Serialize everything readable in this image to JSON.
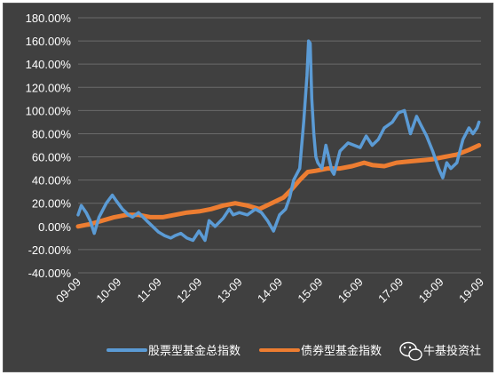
{
  "chart_data": {
    "type": "line",
    "xlabel": "",
    "ylabel": "",
    "ylim": [
      -40,
      180
    ],
    "y_unit": "%",
    "y_ticks": [
      "180.00%",
      "160.00%",
      "140.00%",
      "120.00%",
      "100.00%",
      "80.00%",
      "60.00%",
      "40.00%",
      "20.00%",
      "0.00%",
      "-20.00%",
      "-40.00%"
    ],
    "x_ticks": [
      "09-09",
      "10-09",
      "11-09",
      "12-09",
      "13-09",
      "14-09",
      "15-09",
      "16-09",
      "17-09",
      "18-09",
      "19-09"
    ],
    "grid": true,
    "legend_position": "bottom",
    "series": [
      {
        "name": "股票型基金总指数",
        "color": "#5b9bd5",
        "x": [
          2009.7,
          2009.78,
          2009.9,
          2010.0,
          2010.1,
          2010.22,
          2010.4,
          2010.55,
          2010.65,
          2010.8,
          2010.95,
          2011.05,
          2011.2,
          2011.4,
          2011.55,
          2011.7,
          2011.85,
          2012.0,
          2012.1,
          2012.25,
          2012.4,
          2012.55,
          2012.7,
          2012.85,
          2012.95,
          2013.1,
          2013.3,
          2013.45,
          2013.55,
          2013.7,
          2013.9,
          2014.1,
          2014.25,
          2014.4,
          2014.55,
          2014.7,
          2014.85,
          2014.95,
          2015.05,
          2015.2,
          2015.3,
          2015.38,
          2015.42,
          2015.46,
          2015.5,
          2015.55,
          2015.6,
          2015.65,
          2015.75,
          2015.85,
          2016.0,
          2016.05,
          2016.2,
          2016.4,
          2016.55,
          2016.7,
          2016.85,
          2017.0,
          2017.15,
          2017.3,
          2017.5,
          2017.65,
          2017.8,
          2017.95,
          2018.1,
          2018.2,
          2018.35,
          2018.5,
          2018.65,
          2018.75,
          2018.85,
          2018.95,
          2019.1,
          2019.25,
          2019.4,
          2019.5,
          2019.6,
          2019.65
        ],
        "values": [
          10,
          18,
          12,
          5,
          -6,
          8,
          20,
          27,
          22,
          15,
          10,
          8,
          12,
          5,
          0,
          -5,
          -8,
          -10,
          -8,
          -6,
          -10,
          -12,
          -4,
          -12,
          5,
          0,
          7,
          15,
          10,
          12,
          10,
          15,
          12,
          5,
          -4,
          10,
          15,
          25,
          40,
          50,
          90,
          130,
          160,
          158,
          110,
          80,
          60,
          55,
          50,
          70,
          48,
          45,
          65,
          72,
          70,
          68,
          78,
          70,
          75,
          85,
          90,
          98,
          100,
          80,
          95,
          88,
          78,
          65,
          50,
          42,
          55,
          50,
          55,
          75,
          85,
          80,
          85,
          90
        ]
      },
      {
        "name": "债券型基金指数",
        "color": "#ed7d31",
        "x": [
          2009.7,
          2010.0,
          2010.3,
          2010.6,
          2010.9,
          2011.2,
          2011.5,
          2011.8,
          2012.1,
          2012.4,
          2012.7,
          2013.0,
          2013.3,
          2013.6,
          2013.9,
          2014.2,
          2014.5,
          2014.8,
          2015.0,
          2015.2,
          2015.4,
          2015.6,
          2015.9,
          2016.2,
          2016.5,
          2016.8,
          2017.0,
          2017.3,
          2017.6,
          2017.9,
          2018.2,
          2018.5,
          2018.8,
          2019.1,
          2019.4,
          2019.65
        ],
        "values": [
          0,
          2,
          5,
          8,
          10,
          10,
          8,
          8,
          10,
          12,
          13,
          15,
          18,
          20,
          18,
          15,
          20,
          25,
          32,
          40,
          47,
          48,
          50,
          50,
          52,
          55,
          53,
          52,
          55,
          56,
          57,
          58,
          60,
          62,
          66,
          70
        ]
      }
    ]
  },
  "legend": {
    "stock_label": "股票型基金总指数",
    "bond_label": "债券型基金指数"
  },
  "watermark": {
    "text": "牛基投资社",
    "icon": "wechat-icon"
  }
}
